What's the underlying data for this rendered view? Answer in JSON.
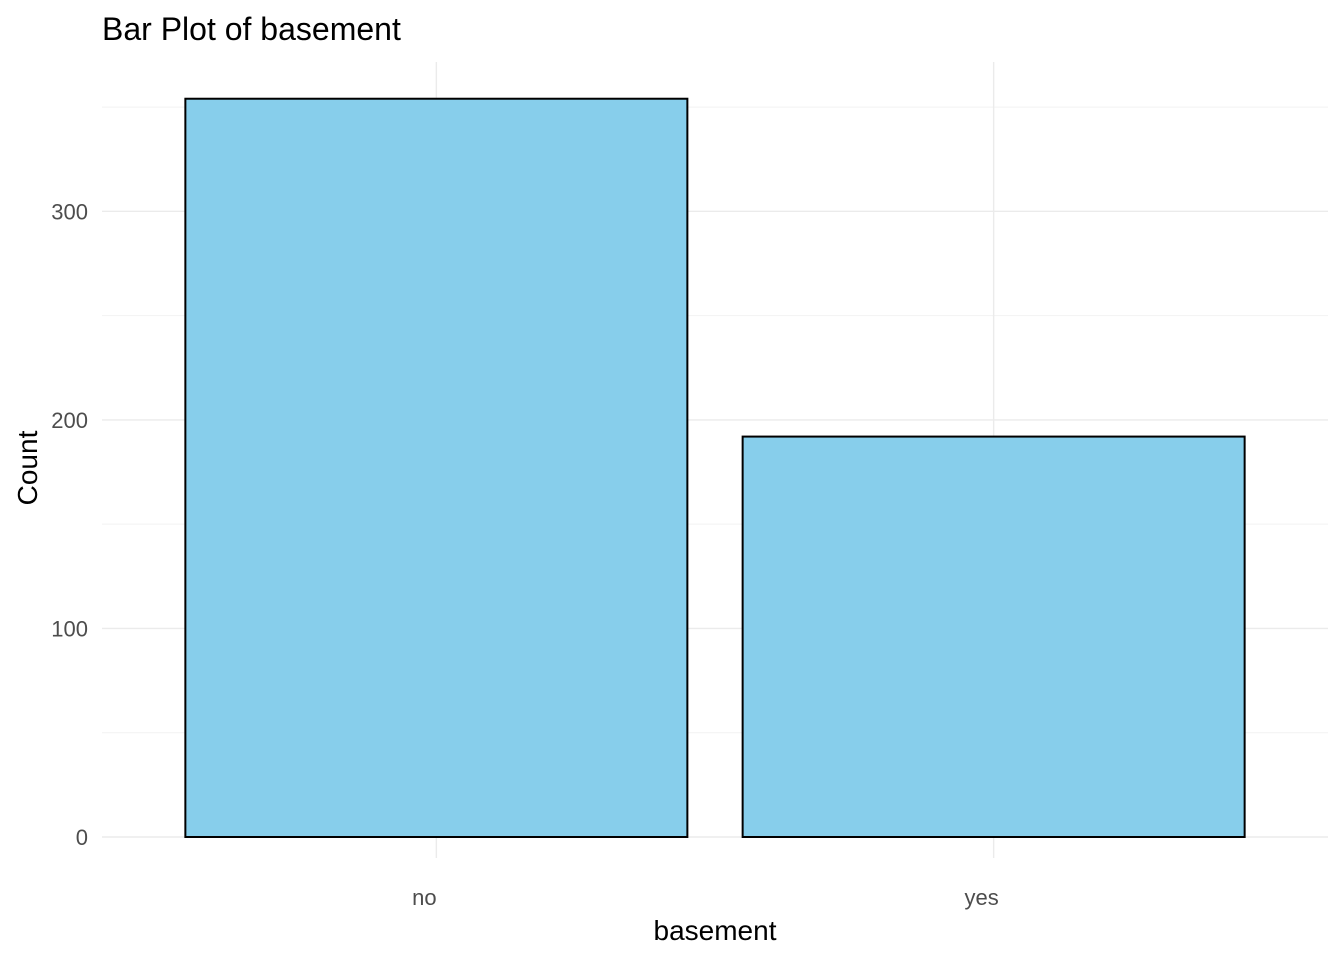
{
  "chart_data": {
    "type": "bar",
    "title": "Bar Plot of basement",
    "xlabel": "basement",
    "ylabel": "Count",
    "categories": [
      "no",
      "yes"
    ],
    "values": [
      354,
      192
    ],
    "ylim": [
      0,
      365
    ],
    "yticks": [
      0,
      100,
      200,
      300
    ],
    "grid": true,
    "bar_fill": "#87CEEB",
    "bar_stroke": "#000000"
  }
}
